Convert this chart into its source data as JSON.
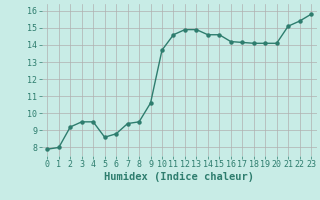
{
  "xlabel": "Humidex (Indice chaleur)",
  "x": [
    0,
    1,
    2,
    3,
    4,
    5,
    6,
    7,
    8,
    9,
    10,
    11,
    12,
    13,
    14,
    15,
    16,
    17,
    18,
    19,
    20,
    21,
    22,
    23
  ],
  "y": [
    7.9,
    8.0,
    9.2,
    9.5,
    9.5,
    8.6,
    8.8,
    9.4,
    9.5,
    10.6,
    13.7,
    14.6,
    14.9,
    14.9,
    14.6,
    14.6,
    14.2,
    14.15,
    14.1,
    14.1,
    14.1,
    15.1,
    15.4,
    15.8
  ],
  "line_color": "#2e7d6e",
  "marker": "o",
  "marker_size": 2.2,
  "linewidth": 1.0,
  "ylim": [
    7.5,
    16.4
  ],
  "xlim": [
    -0.5,
    23.5
  ],
  "yticks": [
    8,
    9,
    10,
    11,
    12,
    13,
    14,
    15,
    16
  ],
  "xticks": [
    0,
    1,
    2,
    3,
    4,
    5,
    6,
    7,
    8,
    9,
    10,
    11,
    12,
    13,
    14,
    15,
    16,
    17,
    18,
    19,
    20,
    21,
    22,
    23
  ],
  "bg_color": "#c8ece6",
  "grid_color": "#b0b0b0",
  "tick_color": "#2e7d6e",
  "label_color": "#2e7d6e",
  "xlabel_fontsize": 7.5,
  "tick_fontsize": 6.0
}
